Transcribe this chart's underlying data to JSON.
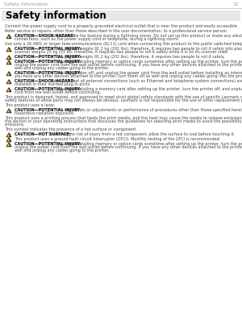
{
  "page_bg": "#ffffff",
  "header_text": "Safety information",
  "page_number": "12",
  "header_line_color": "#bbbbbb",
  "title": "Safety information",
  "title_bg": "#e8e8e8",
  "title_color": "#000000",
  "body_color": "#444444",
  "caution_bold_color": "#000000",
  "warning_icon_fill": "#f0c030",
  "warning_icon_border": "#000000",
  "font_size_header": 4.2,
  "font_size_title": 8.5,
  "font_size_body": 3.5,
  "paragraphs": [
    {
      "type": "text",
      "bold": "",
      "content": "Connect the power supply cord to a properly grounded electrical outlet that is near the product and easily accessible."
    },
    {
      "type": "text",
      "bold": "",
      "content": "Refer service or repairs, other than those described in the user documentation, to a professional service person."
    },
    {
      "type": "caution",
      "bold": "CAUTION—SHOCK HAZARD:",
      "content": " Do not use the fax feature during a lightning storm. Do not set up this product or make any electrical or cabling connections, such as the power supply cord or telephone, during a lightning storm."
    },
    {
      "type": "text",
      "bold": "",
      "content": "Use only a 26 AWG or larger telecommunications (RJ-11) cord when connecting this product to the public switched telephone network."
    },
    {
      "type": "caution",
      "bold": "CAUTION—POTENTIAL INJURY:",
      "content": " The printer weighs 91.2 kg (201 lbs); therefore, it requires two people to roll it safely into place. The scanner weighs 25 kg (55 lb); therefore, it requires two people to roll it safely while it is on its scanner shelf."
    },
    {
      "type": "caution",
      "bold": "CAUTION—POTENTIAL INJURY:",
      "content": " The printer weighs 91.2 kg (201 lbs); therefore, it requires two people to roll it safely."
    },
    {
      "type": "caution",
      "bold": "CAUTION—POTENTIAL INJURY:",
      "content": " If you are installing memory or option cards sometime after setting up the printer, turn the printer off and unplug the power cord from the wall outlet before continuing. If you have any other devices attached to the printer, turn them off as well and unplug any cables going to the printer."
    },
    {
      "type": "caution",
      "bold": "CAUTION—POTENTIAL INJURY:",
      "content": " Turn the printer off, and unplug the power cord from the wall outlet before installing an internal option. If you have any other devices attached to the printer, turn them off as well and unplug any cables going into the printer."
    },
    {
      "type": "caution",
      "bold": "CAUTION—SHOCK HAZARD:",
      "content": " Make sure that all external connections (such as Ethernet and telephone system connections) are properly installed in their marked plug-in ports."
    },
    {
      "type": "caution",
      "bold": "CAUTION—POTENTIAL INJURY:",
      "content": " If you are installing a memory card after setting up the printer, turn the printer off, and unplug the power cord from the wall outlet before continuing."
    },
    {
      "type": "text",
      "bold": "",
      "content": "This product is designed, tested, and approved to meet strict global safety standards with the use of specific Lexmark components. The safety features of some parts may not always be obvious. Lexmark is not responsible for the use of other replacement parts."
    },
    {
      "type": "text",
      "bold": "",
      "content": "This product uses a laser."
    },
    {
      "type": "caution",
      "bold": "CAUTION—POTENTIAL INJURY:",
      "content": " Use of controls or adjustments or performance of procedures other than those specified herein may result in hazardous radiation exposure."
    },
    {
      "type": "text",
      "bold": "",
      "content": "This product uses a printing process that heats the print media, and the heat may cause the media to release emissions. You must understand the section in your operating instructions that discusses the guidelines for selecting print media to avoid the possibility of harmful emissions."
    },
    {
      "type": "text",
      "bold": "",
      "content": "This symbol indicates the presence of a hot surface or component."
    },
    {
      "type": "caution",
      "bold": "CAUTION—HOT SURFACE:",
      "content": " To reduce the risk of injury from a hot component, allow the surface to cool before touching it."
    },
    {
      "type": "caution",
      "bold": "",
      "content": " This product uses a ground fault circuit interrupter (GFCI). Monthly testing of the GFCI is recommended."
    },
    {
      "type": "caution",
      "bold": "CAUTION—POTENTIAL INJURY:",
      "content": " If you are installing memory or option cards sometime after setting up the printer, turn the printer off and unplug the power cord from the wall outlet before continuing. If you have any other devices attached to the printer, turn them off as well and unplug any cables going to the printer."
    }
  ]
}
